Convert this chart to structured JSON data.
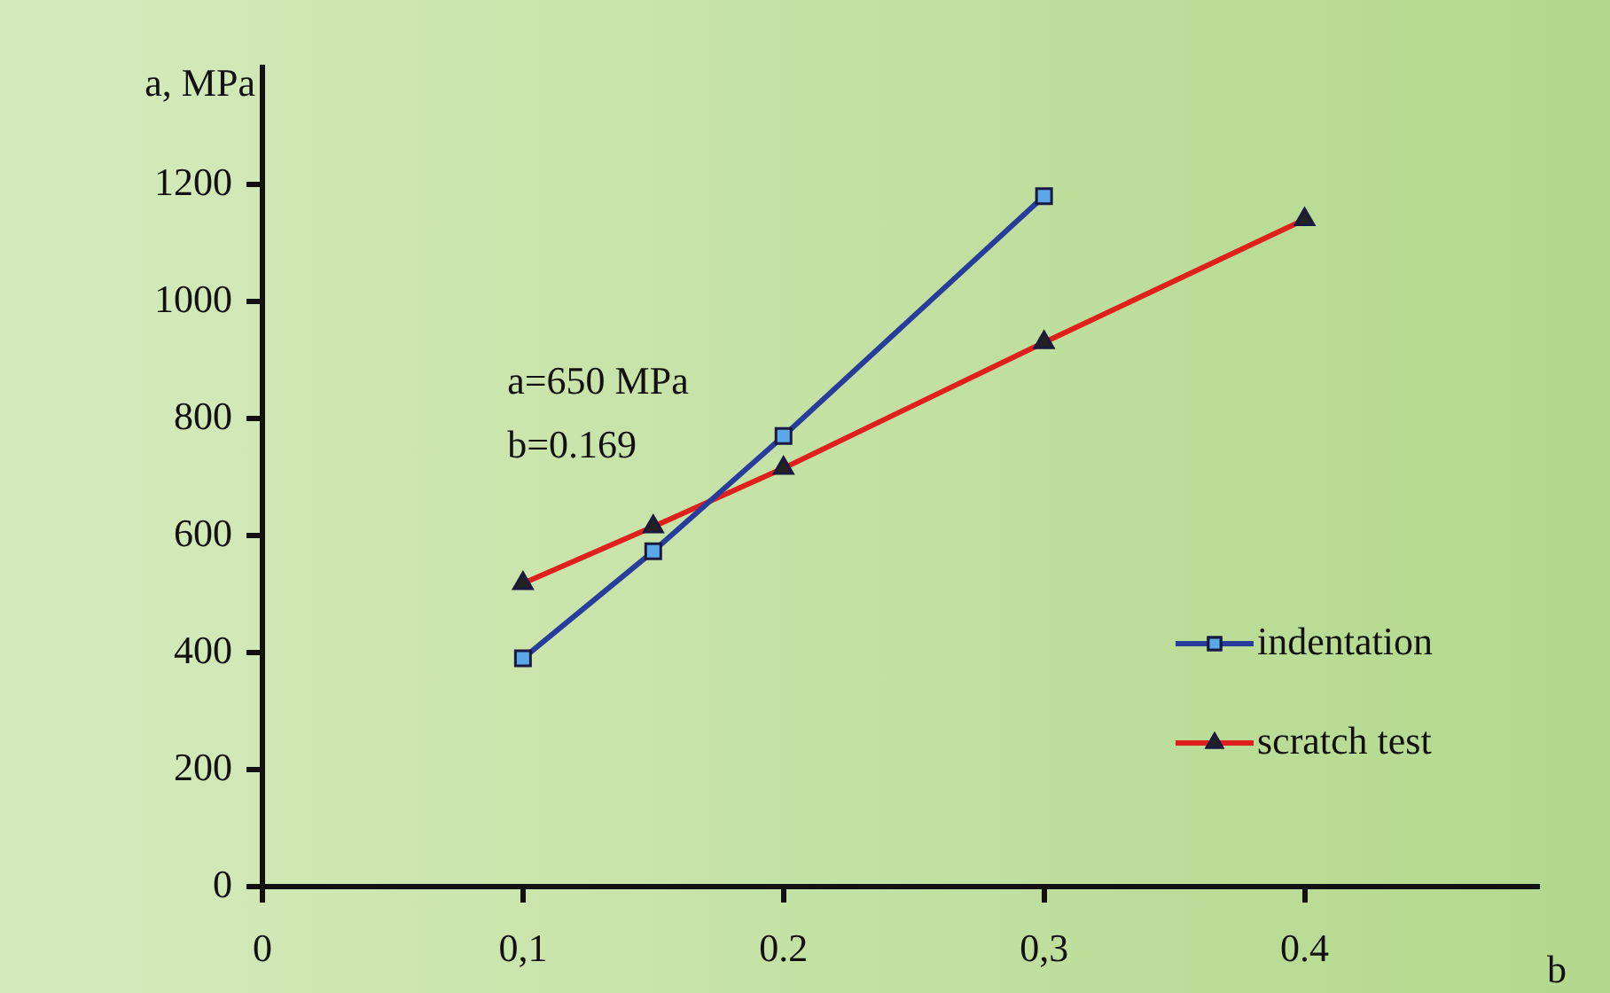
{
  "chart_data": {
    "type": "line",
    "xlabel": "b",
    "ylabel": "a, MPa",
    "xlim": [
      0,
      0.49
    ],
    "xticks": [
      0,
      {
        "value": 0.1,
        "label": "0,1"
      },
      0.2,
      {
        "value": 0.3,
        "label": "0,3"
      },
      0.4
    ],
    "ylim": [
      0,
      1400
    ],
    "yticks": [
      0,
      200,
      400,
      600,
      800,
      1000,
      1200
    ],
    "grid": false,
    "legend": "right",
    "line_style": "solid",
    "annotations": [
      "a=650 MPa",
      "b=0.169"
    ],
    "series": [
      {
        "name": "indentation",
        "color": "#283c9c",
        "marker": "square",
        "x": [
          0.1,
          0.15,
          0.2,
          0.3
        ],
        "values": [
          390,
          573,
          770,
          1180
        ]
      },
      {
        "name": "scratch test",
        "color": "#e0201c",
        "marker": "triangle",
        "x": [
          0.1,
          0.15,
          0.2,
          0.3,
          0.4
        ],
        "values": [
          518,
          615,
          715,
          930,
          1140
        ]
      }
    ]
  }
}
